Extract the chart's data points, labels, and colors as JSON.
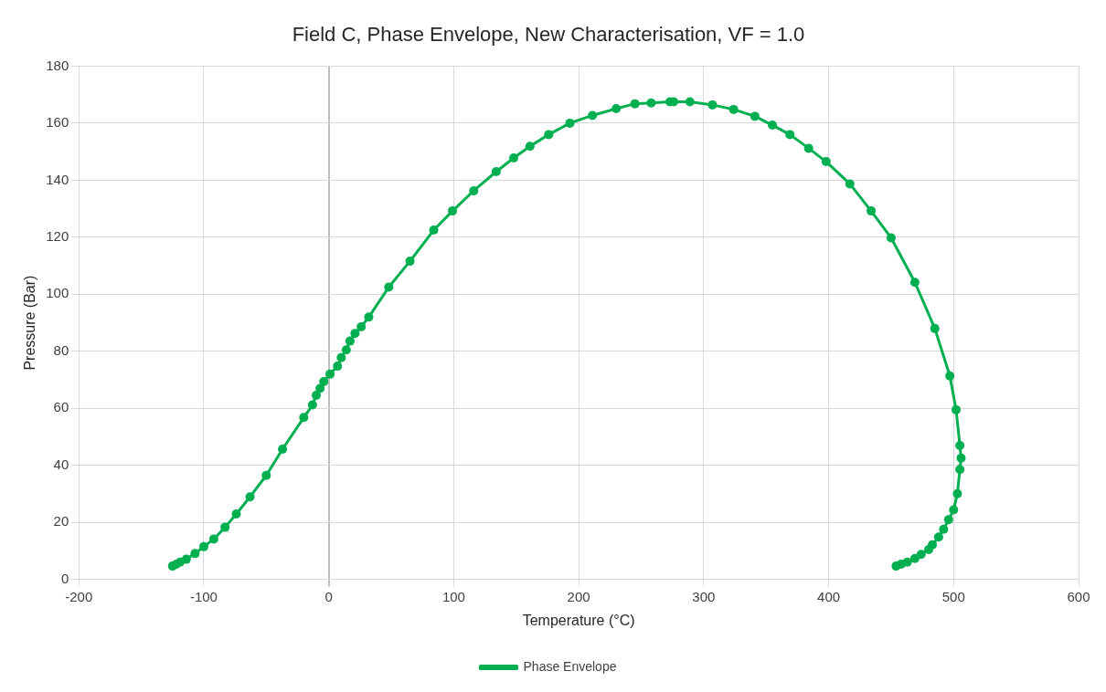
{
  "chart_data": {
    "type": "line",
    "title": "Field C, Phase Envelope, New Characterisation, VF = 1.0",
    "xlabel": "Temperature (°C)",
    "ylabel": "Pressure (Bar)",
    "xlim": [
      -200,
      600
    ],
    "xticks": [
      -200,
      -100,
      0,
      100,
      200,
      300,
      400,
      500,
      600
    ],
    "ylim": [
      0,
      180
    ],
    "yticks": [
      0,
      20,
      40,
      60,
      80,
      100,
      120,
      140,
      160,
      180
    ],
    "grid": true,
    "legend": "bottom",
    "marker": "circle",
    "line_style": "solid",
    "series": [
      {
        "name": "Phase Envelope",
        "color": "#00b050",
        "x": [
          -125,
          -122,
          -119,
          -114,
          -107,
          -100,
          -92,
          -83,
          -74,
          -63,
          -50,
          -37,
          -20,
          -13,
          -10,
          -7,
          -4,
          1,
          7,
          10,
          14,
          17,
          21,
          26,
          32,
          48,
          65,
          84,
          99,
          116,
          134,
          148,
          161,
          176,
          193,
          211,
          230,
          245,
          258,
          273,
          276,
          289,
          307,
          324,
          341,
          355,
          369,
          384,
          398,
          417,
          434,
          450,
          469,
          485,
          497,
          502,
          505,
          506,
          505,
          503,
          500,
          496,
          492,
          488,
          483,
          480,
          474,
          469,
          463,
          458,
          454
        ],
        "values": [
          4.7,
          5.4,
          6.1,
          7.1,
          9.1,
          11.5,
          14.2,
          18.3,
          23,
          29,
          36.5,
          45.7,
          56.8,
          61.2,
          64.6,
          67,
          69.4,
          72,
          74.8,
          77.8,
          80.5,
          83.6,
          86.3,
          88.6,
          92,
          102.5,
          111.6,
          122.5,
          129.2,
          136.3,
          143,
          147.8,
          151.9,
          156,
          160,
          162.7,
          165.1,
          166.8,
          167.1,
          167.5,
          167.5,
          167.5,
          166.4,
          164.8,
          162.4,
          159.3,
          156,
          151.2,
          146.5,
          138.7,
          129.2,
          119.8,
          104.2,
          88,
          71.4,
          59.5,
          47,
          42.6,
          38.6,
          30.1,
          24.4,
          21,
          17.6,
          14.9,
          12.2,
          10.5,
          8.8,
          7.4,
          6.1,
          5.4,
          4.7
        ]
      }
    ]
  }
}
